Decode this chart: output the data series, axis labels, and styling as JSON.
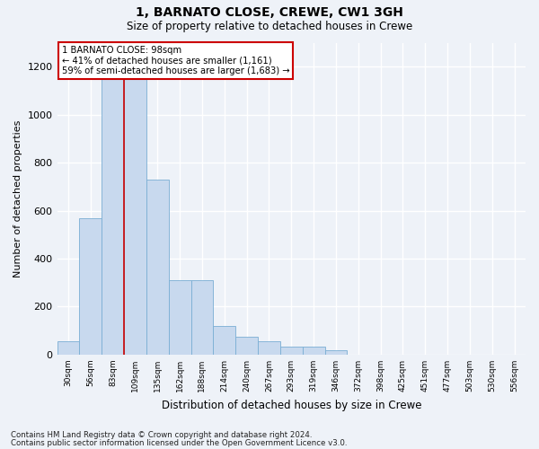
{
  "title": "1, BARNATO CLOSE, CREWE, CW1 3GH",
  "subtitle": "Size of property relative to detached houses in Crewe",
  "xlabel": "Distribution of detached houses by size in Crewe",
  "ylabel": "Number of detached properties",
  "bar_color": "#c8d9ee",
  "bar_edge_color": "#7aaed4",
  "bar_categories": [
    "30sqm",
    "56sqm",
    "83sqm",
    "109sqm",
    "135sqm",
    "162sqm",
    "188sqm",
    "214sqm",
    "240sqm",
    "267sqm",
    "293sqm",
    "319sqm",
    "346sqm",
    "372sqm",
    "398sqm",
    "425sqm",
    "451sqm",
    "477sqm",
    "503sqm",
    "530sqm",
    "556sqm"
  ],
  "bar_values": [
    55,
    570,
    1160,
    1160,
    730,
    310,
    310,
    120,
    75,
    55,
    35,
    35,
    20,
    0,
    0,
    0,
    0,
    0,
    0,
    0,
    0
  ],
  "vline_x_index": 2.5,
  "vline_color": "#cc0000",
  "annotation_text": "1 BARNATO CLOSE: 98sqm\n← 41% of detached houses are smaller (1,161)\n59% of semi-detached houses are larger (1,683) →",
  "annotation_box_color": "#ffffff",
  "annotation_box_edge": "#cc0000",
  "ylim": [
    0,
    1300
  ],
  "yticks": [
    0,
    200,
    400,
    600,
    800,
    1000,
    1200
  ],
  "footer_line1": "Contains HM Land Registry data © Crown copyright and database right 2024.",
  "footer_line2": "Contains public sector information licensed under the Open Government Licence v3.0.",
  "background_color": "#eef2f8",
  "grid_color": "#ffffff"
}
